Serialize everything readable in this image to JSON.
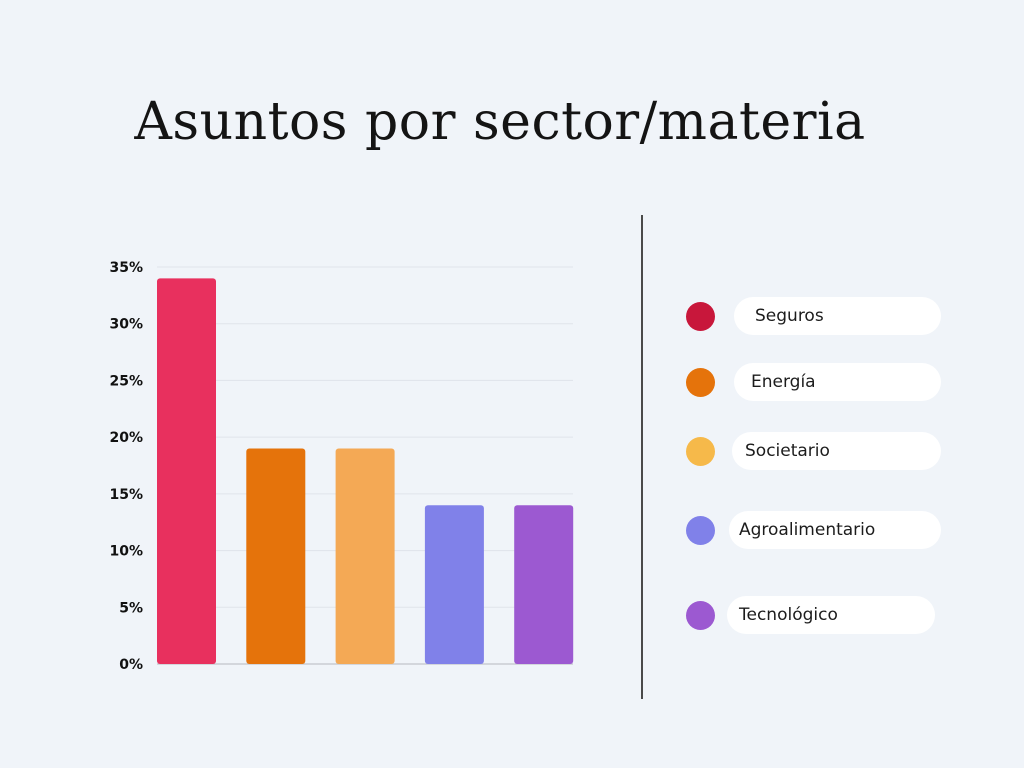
{
  "chart_data": {
    "type": "bar",
    "title": "Asuntos por sector/materia",
    "categories": [
      "Seguros",
      "Energía",
      "Societario",
      "Agroalimentario",
      "Tecnológico"
    ],
    "values": [
      34,
      19,
      19,
      14,
      14
    ],
    "colors": [
      "#e8305e",
      "#e5730b",
      "#f4a955",
      "#8081e9",
      "#9c59d1"
    ],
    "ylim": [
      0,
      35
    ],
    "yticks": [
      0,
      5,
      10,
      15,
      20,
      25,
      30,
      35
    ],
    "ytick_labels": [
      "0%",
      "5%",
      "10%",
      "15%",
      "20%",
      "25%",
      "30%",
      "35%"
    ],
    "grid": true,
    "legend_placement": "right",
    "legend": [
      {
        "label": "Seguros",
        "color": "#c8173b"
      },
      {
        "label": "Energía",
        "color": "#e5730b"
      },
      {
        "label": "Societario",
        "color": "#f6b94a"
      },
      {
        "label": "Agroalimentario",
        "color": "#8081e9"
      },
      {
        "label": "Tecnológico",
        "color": "#9c59d1"
      }
    ]
  }
}
